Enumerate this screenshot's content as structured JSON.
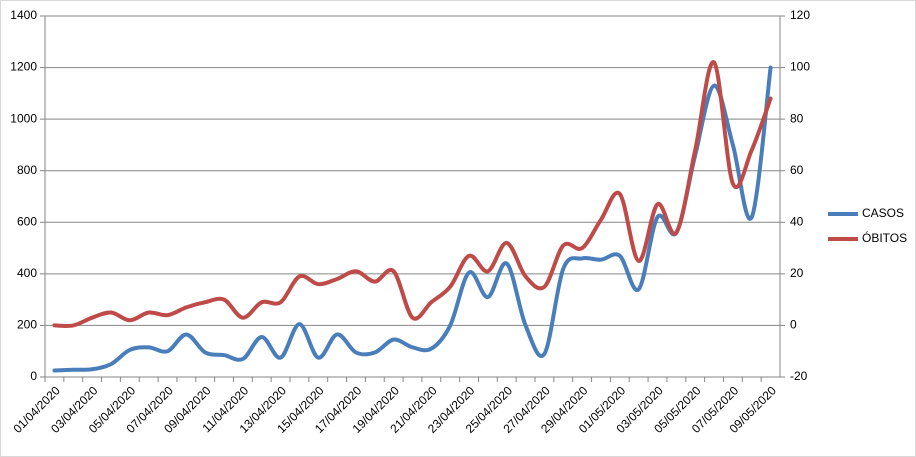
{
  "chart_data": {
    "type": "line",
    "categories": [
      "01/04/2020",
      null,
      "03/04/2020",
      null,
      "05/04/2020",
      null,
      "07/04/2020",
      null,
      "09/04/2020",
      null,
      "11/04/2020",
      null,
      "13/04/2020",
      null,
      "15/04/2020",
      null,
      "17/04/2020",
      null,
      "19/04/2020",
      null,
      "21/04/2020",
      null,
      "23/04/2020",
      null,
      "25/04/2020",
      null,
      "27/04/2020",
      null,
      "29/04/2020",
      null,
      "01/05/2020",
      null,
      "03/05/2020",
      null,
      "05/05/2020",
      null,
      "07/05/2020",
      null,
      "09/05/2020"
    ],
    "series": [
      {
        "name": "CASOS",
        "color": "#4a7ebb",
        "values": [
          25,
          28,
          30,
          50,
          105,
          115,
          100,
          165,
          95,
          85,
          70,
          155,
          75,
          205,
          75,
          165,
          95,
          95,
          145,
          115,
          110,
          200,
          405,
          310,
          440,
          200,
          90,
          420,
          460,
          455,
          470,
          340,
          620,
          560,
          860,
          1130,
          900,
          620,
          1200
        ]
      },
      {
        "name": "ÓBITOS",
        "color": "#be4b48",
        "axis": "y2",
        "values": [
          0,
          0,
          3,
          5,
          2,
          5,
          4,
          7,
          9,
          10,
          3,
          9,
          9,
          19,
          16,
          18,
          21,
          17,
          21,
          3,
          9,
          15,
          27,
          21,
          32,
          19,
          15,
          31,
          30,
          41,
          51,
          25,
          47,
          36,
          68,
          102,
          55,
          68,
          88
        ]
      }
    ],
    "ylim": [
      0,
      1400
    ],
    "yticks": [
      0,
      200,
      400,
      600,
      800,
      1000,
      1200,
      1400
    ],
    "y2lim": [
      -20,
      120
    ],
    "y2ticks": [
      -20,
      0,
      20,
      40,
      60,
      80,
      100,
      120
    ],
    "grid": true,
    "smooth": true,
    "legend": "right"
  }
}
